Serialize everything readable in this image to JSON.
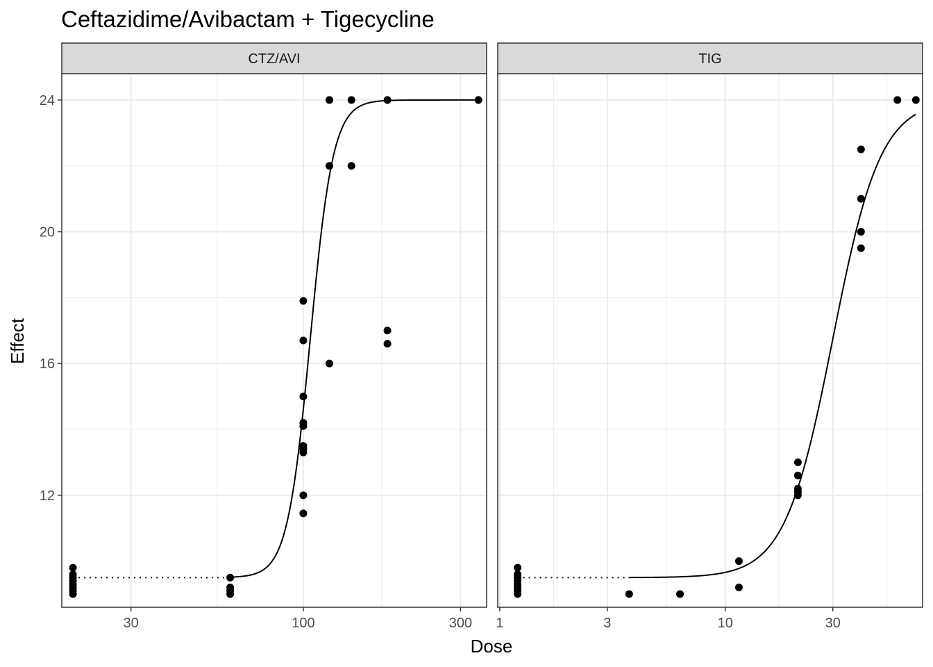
{
  "chart_data": {
    "type": "scatter",
    "title": "Ceftazidime/Avibactam + Tigecycline",
    "xlabel": "Dose",
    "ylabel": "Effect",
    "x_scale": "log10",
    "grid": true,
    "y_ticks": [
      "12",
      "16",
      "20",
      "24"
    ],
    "y_tick_values": [
      12,
      16,
      20,
      24
    ],
    "ylim": [
      8.6,
      24.8
    ],
    "colors": {
      "points": "#000000",
      "curve": "#000000",
      "strip": "#d9d9d9",
      "grid": "#ebebeb"
    },
    "panels": [
      {
        "strip": "CTZ/AVI",
        "xlim": [
          18.5,
          360
        ],
        "x_ticks": [
          "30",
          "100",
          "300"
        ],
        "x_tick_values": [
          30,
          100,
          300
        ],
        "control_dose": 20,
        "control_points": [
          9.8,
          9.6,
          9.5,
          9.4,
          9.3,
          9.2,
          9.1,
          9.0
        ],
        "points": [
          [
            60,
            9.5
          ],
          [
            60,
            9.2
          ],
          [
            60,
            9.1
          ],
          [
            60,
            9.0
          ],
          [
            100,
            17.9
          ],
          [
            100,
            16.7
          ],
          [
            100,
            15.0
          ],
          [
            100,
            14.2
          ],
          [
            100,
            14.1
          ],
          [
            100,
            13.5
          ],
          [
            100,
            13.4
          ],
          [
            100,
            13.3
          ],
          [
            100,
            12.0
          ],
          [
            100,
            11.45
          ],
          [
            120,
            24.0
          ],
          [
            120,
            22.0
          ],
          [
            120,
            16.0
          ],
          [
            140,
            24.0
          ],
          [
            140,
            22.0
          ],
          [
            180,
            24.0
          ],
          [
            180,
            17.0
          ],
          [
            180,
            16.6
          ],
          [
            340,
            24.0
          ]
        ],
        "curve": {
          "bottom": 9.5,
          "top": 24.0,
          "ec50": 105,
          "hill": 12.5,
          "x_from": 60,
          "x_to": 340
        }
      },
      {
        "strip": "TIG",
        "xlim": [
          0.98,
          75
        ],
        "x_ticks": [
          "1",
          "3",
          "10",
          "30"
        ],
        "x_tick_values": [
          1,
          3,
          10,
          30
        ],
        "control_dose": 1.2,
        "control_points": [
          9.8,
          9.6,
          9.5,
          9.4,
          9.3,
          9.2,
          9.1,
          9.0
        ],
        "points": [
          [
            3.75,
            9.0
          ],
          [
            6.3,
            9.0
          ],
          [
            11.5,
            10.0
          ],
          [
            11.5,
            9.2
          ],
          [
            21,
            13.0
          ],
          [
            21,
            12.6
          ],
          [
            21,
            12.2
          ],
          [
            21,
            12.1
          ],
          [
            21,
            12.0
          ],
          [
            40,
            22.5
          ],
          [
            40,
            21.0
          ],
          [
            40,
            20.0
          ],
          [
            40,
            19.5
          ],
          [
            58,
            24.0
          ],
          [
            70,
            24.0
          ]
        ],
        "curve": {
          "bottom": 9.5,
          "top": 24.0,
          "ec50": 30,
          "hill": 4.1,
          "x_from": 3.75,
          "x_to": 70
        }
      }
    ]
  }
}
